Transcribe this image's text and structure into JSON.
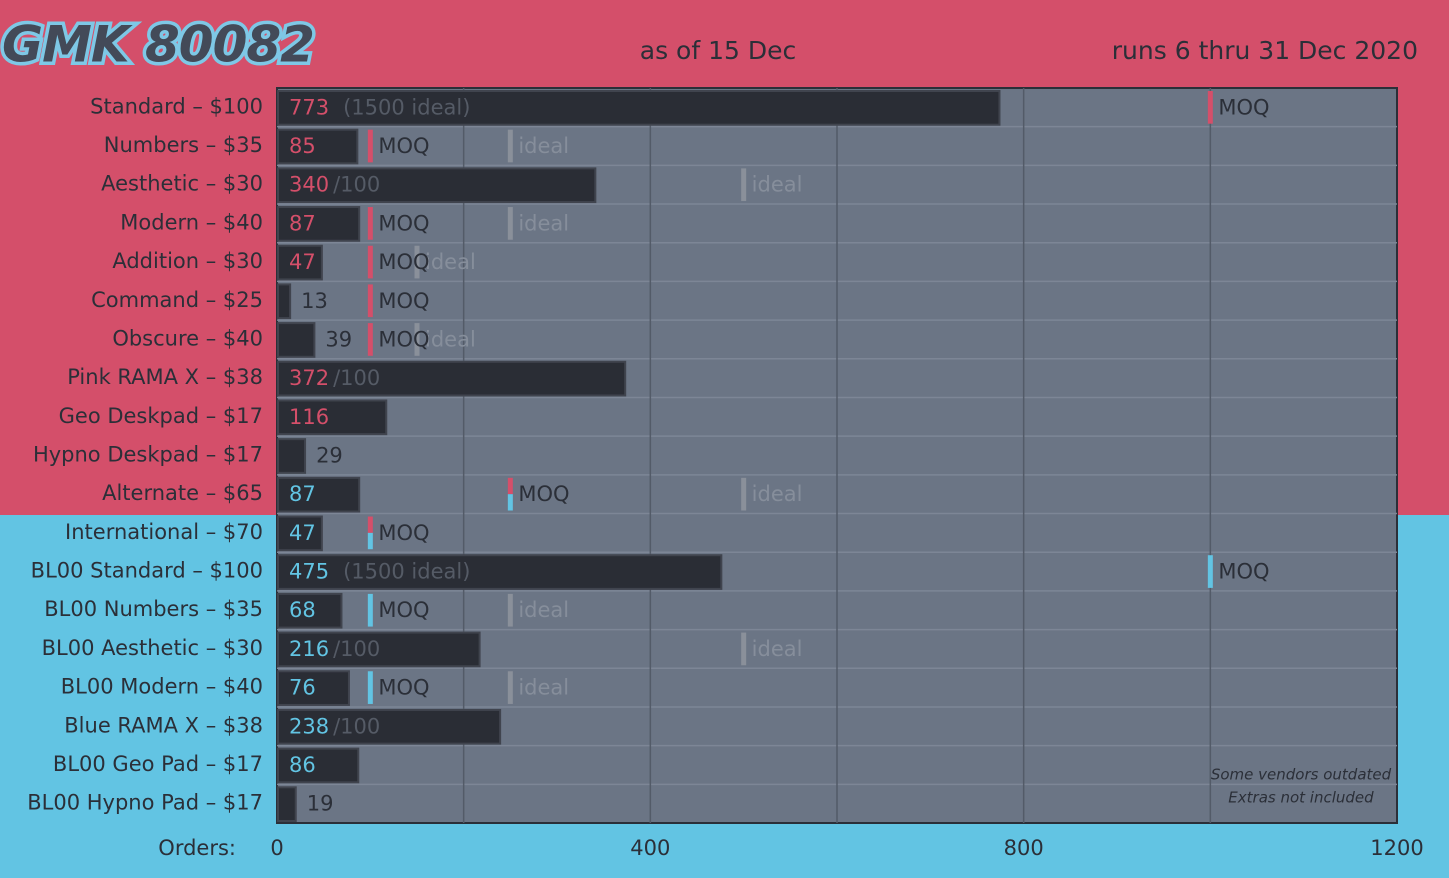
{
  "chart_data": {
    "type": "bar",
    "orientation": "horizontal",
    "title": "GMK 80082",
    "subtitle": "as of 15 Dec",
    "run_dates": "runs 6 thru 31 Dec 2020",
    "x_label": "Orders:",
    "xlim": [
      0,
      1200
    ],
    "xticks": [
      0,
      400,
      800,
      1200
    ],
    "minor_xticks": [
      200,
      600,
      1000
    ],
    "grid": true,
    "moq_label": "MOQ",
    "ideal_label": "ideal",
    "pink": "#d44f6a",
    "blue": "#62c4e3",
    "footnotes": [
      "Some vendors outdated",
      "Extras not included"
    ],
    "rows": [
      {
        "label": "Standard – $100",
        "value": 773,
        "note": "(1500 ideal)",
        "moq": 1000,
        "ideal": null,
        "colors": [
          "#d44f6a"
        ]
      },
      {
        "label": "Numbers – $35",
        "value": 85,
        "note": null,
        "moq": 100,
        "ideal": 250,
        "colors": [
          "#d44f6a"
        ]
      },
      {
        "label": "Aesthetic – $30",
        "value": 340,
        "note": "/100",
        "moq": null,
        "ideal": 500,
        "colors": [
          "#d44f6a"
        ]
      },
      {
        "label": "Modern – $40",
        "value": 87,
        "note": null,
        "moq": 100,
        "ideal": 250,
        "colors": [
          "#d44f6a"
        ]
      },
      {
        "label": "Addition – $30",
        "value": 47,
        "note": null,
        "moq": 100,
        "ideal": 150,
        "colors": [
          "#d44f6a"
        ]
      },
      {
        "label": "Command – $25",
        "value": 13,
        "note": null,
        "moq": 100,
        "ideal": null,
        "colors": [
          "#d44f6a"
        ]
      },
      {
        "label": "Obscure – $40",
        "value": 39,
        "note": null,
        "moq": 100,
        "ideal": 150,
        "colors": [
          "#d44f6a"
        ]
      },
      {
        "label": "Pink RAMA X – $38",
        "value": 372,
        "note": "/100",
        "moq": null,
        "ideal": null,
        "colors": [
          "#d44f6a"
        ]
      },
      {
        "label": "Geo Deskpad – $17",
        "value": 116,
        "note": null,
        "moq": null,
        "ideal": null,
        "colors": [
          "#d44f6a"
        ]
      },
      {
        "label": "Hypno Deskpad – $17",
        "value": 29,
        "note": null,
        "moq": null,
        "ideal": null,
        "colors": [
          "#d44f6a"
        ]
      },
      {
        "label": "Alternate – $65",
        "value": 87,
        "note": null,
        "moq": 250,
        "ideal": 500,
        "colors": [
          "#d44f6a",
          "#62c4e3"
        ]
      },
      {
        "label": "International – $70",
        "value": 47,
        "note": null,
        "moq": 100,
        "ideal": null,
        "colors": [
          "#d44f6a",
          "#62c4e3"
        ]
      },
      {
        "label": "BL00 Standard – $100",
        "value": 475,
        "note": "(1500 ideal)",
        "moq": 1000,
        "ideal": null,
        "colors": [
          "#62c4e3"
        ]
      },
      {
        "label": "BL00 Numbers – $35",
        "value": 68,
        "note": null,
        "moq": 100,
        "ideal": 250,
        "colors": [
          "#62c4e3"
        ]
      },
      {
        "label": "BL00 Aesthetic – $30",
        "value": 216,
        "note": "/100",
        "moq": null,
        "ideal": 500,
        "colors": [
          "#62c4e3"
        ]
      },
      {
        "label": "BL00 Modern – $40",
        "value": 76,
        "note": null,
        "moq": 100,
        "ideal": 250,
        "colors": [
          "#62c4e3"
        ]
      },
      {
        "label": "Blue RAMA X – $38",
        "value": 238,
        "note": "/100",
        "moq": null,
        "ideal": null,
        "colors": [
          "#62c4e3"
        ]
      },
      {
        "label": "BL00 Geo Pad – $17",
        "value": 86,
        "note": null,
        "moq": null,
        "ideal": null,
        "colors": [
          "#62c4e3"
        ]
      },
      {
        "label": "BL00 Hypno Pad – $17",
        "value": 19,
        "note": null,
        "moq": null,
        "ideal": null,
        "colors": [
          "#62c4e3"
        ]
      }
    ]
  }
}
